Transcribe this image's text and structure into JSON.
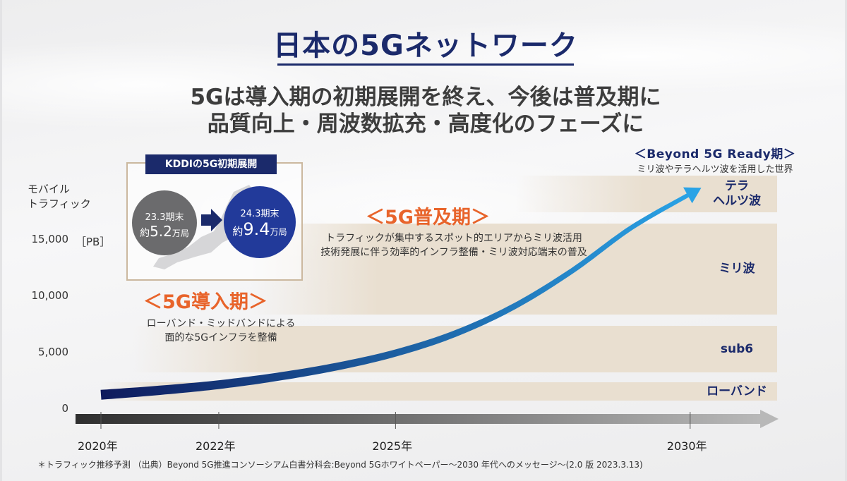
{
  "title": "日本の5Gネットワーク",
  "subtitle_lines": [
    "5Gは導入期の初期展開を終え、今後は普及期に",
    "品質向上・周波数拡充・高度化のフェーズに"
  ],
  "kddi_box": {
    "heading": "KDDIの5G初期展開",
    "before": {
      "period": "23.3期末",
      "prefix": "約",
      "value": "5.2",
      "unit": "万局"
    },
    "after": {
      "period": "24.3期末",
      "prefix": "約",
      "value": "9.4",
      "unit": "万局"
    }
  },
  "phases": {
    "intro": {
      "title": "＜5G導入期＞",
      "desc_lines": [
        "ローバンド・ミッドバンドによる",
        "面的な5Gインフラを整備"
      ]
    },
    "spread": {
      "title": "＜5G普及期＞",
      "desc_lines": [
        "トラフィックが集中するスポット的エリアからミリ波活用",
        "技術発展に伴う効率的インフラ整備・ミリ波対応端末の普及"
      ]
    },
    "beyond": {
      "title": "＜Beyond 5G Ready期＞",
      "desc": "ミリ波やテラヘルツ波を活用した世界"
    }
  },
  "footnote": "＊トラフィック推移予測 （出典）Beyond 5G推進コンソーシアム白書分科会:Beyond 5Gホワイトペーパー～2030 年代へのメッセージ～(2.0 版 2023.3.13)",
  "chart_data": {
    "type": "area",
    "ylabel": "モバイル\nトラフィック",
    "unit": "［PB］",
    "ylim": [
      0,
      16000
    ],
    "yticks": [
      {
        "value": 0,
        "label": "0"
      },
      {
        "value": 5000,
        "label": "5,000"
      },
      {
        "value": 10000,
        "label": "10,000"
      },
      {
        "value": 15000,
        "label": "15,000"
      }
    ],
    "xlim": [
      2020,
      2031.5
    ],
    "xticks": [
      {
        "value": 2020,
        "label": "2020年"
      },
      {
        "value": 2022,
        "label": "2022年"
      },
      {
        "value": 2025,
        "label": "2025年"
      },
      {
        "value": 2030,
        "label": "2030年"
      }
    ],
    "bands": [
      {
        "name": "ローバンド",
        "from": 700,
        "to": 2300,
        "fade_start": 2020
      },
      {
        "name": "sub6",
        "from": 3200,
        "to": 7300,
        "fade_start": 2021.5
      },
      {
        "name": "ミリ波",
        "from": 8300,
        "to": 16400,
        "fade_start": 2023.5
      },
      {
        "name": "テラ\nヘルツ波",
        "from": 17400,
        "to": 20600,
        "fade_start": 2028
      }
    ],
    "series": [
      {
        "x": [
          2020,
          2021,
          2022,
          2023,
          2024,
          2025,
          2026,
          2027,
          2028,
          2029,
          2030
        ],
        "values": [
          1200,
          1600,
          2100,
          2800,
          3700,
          4900,
          6600,
          9000,
          12200,
          16000,
          19000
        ]
      }
    ],
    "colors": {
      "curve_start": "#0f1a5c",
      "curve_end": "#2aa3e6",
      "band": "#e9dfd0",
      "axis_start": "#2f2f2f",
      "axis_end": "#b8b8b8"
    }
  }
}
